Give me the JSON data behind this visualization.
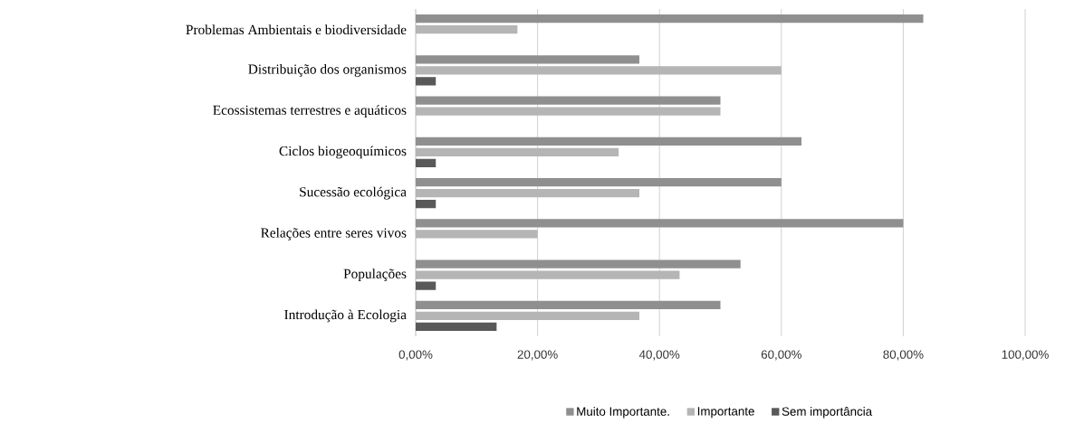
{
  "chart_data": {
    "type": "bar",
    "orientation": "horizontal",
    "categories": [
      "Problemas Ambientais e biodiversidade",
      "Distribuição dos organismos",
      "Ecossistemas terrestres e aquáticos",
      "Ciclos biogeoquímicos",
      "Sucessão ecológica",
      "Relações entre seres vivos",
      "Populações",
      "Introdução à Ecologia"
    ],
    "series": [
      {
        "name": "Muito Importante.",
        "color": "#8f8f8f",
        "values": [
          83.3,
          36.7,
          50,
          63.3,
          60,
          80,
          53.3,
          50
        ]
      },
      {
        "name": "Importante",
        "color": "#b5b5b5",
        "values": [
          16.7,
          60,
          50,
          33.3,
          36.7,
          20,
          43.3,
          36.7
        ]
      },
      {
        "name": "Sem importância",
        "color": "#595959",
        "values": [
          0,
          3.3,
          0,
          3.3,
          3.3,
          0,
          3.3,
          13.3
        ]
      }
    ],
    "xlim": [
      0,
      100
    ],
    "xticks": [
      {
        "value": 0,
        "label": "0,00%"
      },
      {
        "value": 20,
        "label": "20,00%"
      },
      {
        "value": 40,
        "label": "40,00%"
      },
      {
        "value": 60,
        "label": "60,00%"
      },
      {
        "value": 80,
        "label": "80,00%"
      },
      {
        "value": 100,
        "label": "100,00%"
      }
    ],
    "grid": "x",
    "legend": "bottom"
  }
}
